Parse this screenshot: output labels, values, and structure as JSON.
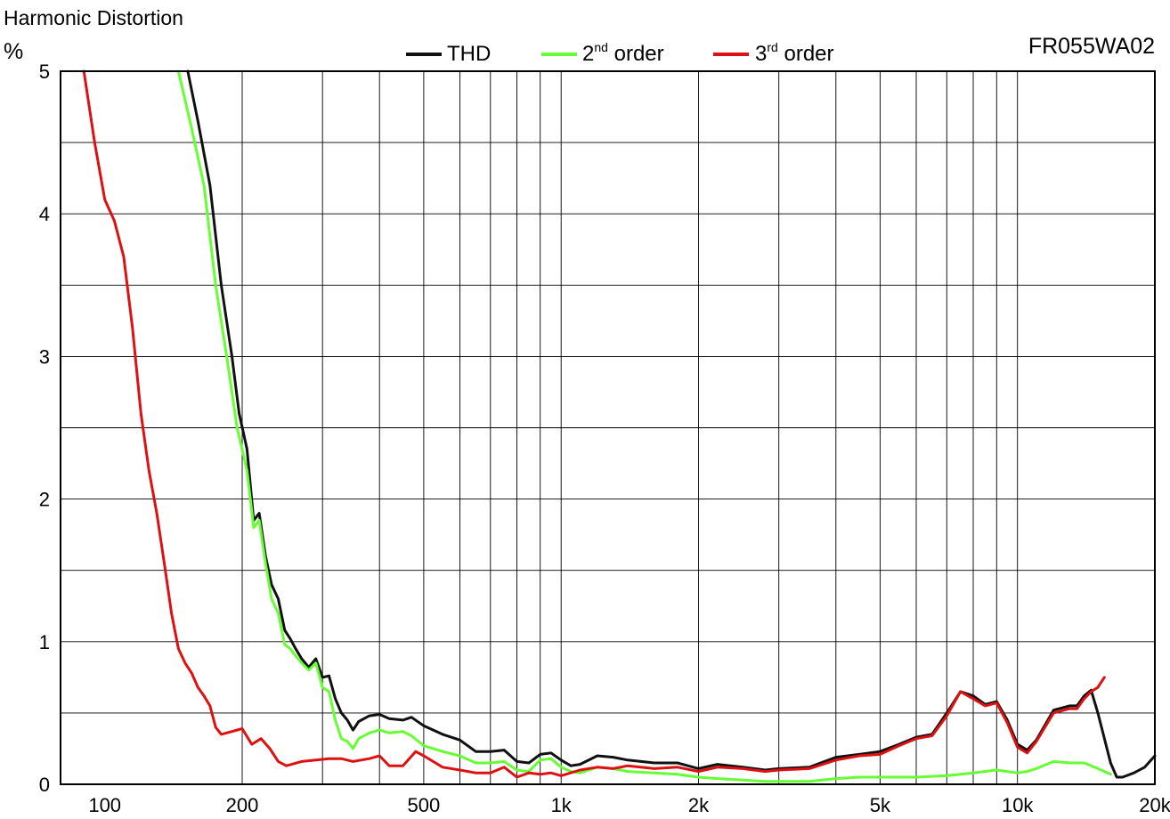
{
  "chart_data": {
    "type": "line",
    "title": "Harmonic Distortion",
    "ylabel": "%",
    "model": "FR055WA02",
    "xscale": "log",
    "xlim": [
      80,
      20000
    ],
    "ylim": [
      0,
      5
    ],
    "grid": true,
    "legend_position": "top-center",
    "y_ticks": [
      {
        "value": 0,
        "label": "0"
      },
      {
        "value": 1,
        "label": "1"
      },
      {
        "value": 2,
        "label": "2"
      },
      {
        "value": 3,
        "label": "3"
      },
      {
        "value": 4,
        "label": "4"
      },
      {
        "value": 5,
        "label": "5"
      }
    ],
    "y_gridlines": [
      0.5,
      1,
      1.5,
      2,
      2.5,
      3,
      3.5,
      4,
      4.5
    ],
    "x_ticks": [
      {
        "value": 100,
        "label": "100"
      },
      {
        "value": 200,
        "label": "200"
      },
      {
        "value": 500,
        "label": "500"
      },
      {
        "value": 1000,
        "label": "1k"
      },
      {
        "value": 2000,
        "label": "2k"
      },
      {
        "value": 5000,
        "label": "5k"
      },
      {
        "value": 10000,
        "label": "10k"
      },
      {
        "value": 20000,
        "label": "20k"
      }
    ],
    "x_gridlines": [
      200,
      300,
      400,
      500,
      600,
      700,
      800,
      900,
      1000,
      2000,
      3000,
      4000,
      5000,
      6000,
      7000,
      8000,
      9000,
      10000
    ],
    "legend": [
      {
        "text": "THD",
        "sup": "",
        "suffix": "",
        "color": "#111111"
      },
      {
        "text": "2",
        "sup": "nd",
        "suffix": " order",
        "color": "#66ff33"
      },
      {
        "text": "3",
        "sup": "rd",
        "suffix": " order",
        "color": "#dd1111"
      }
    ],
    "series": [
      {
        "name": "THD",
        "color": "#111111",
        "points": [
          [
            152,
            5.0
          ],
          [
            160,
            4.65
          ],
          [
            170,
            4.2
          ],
          [
            180,
            3.5
          ],
          [
            190,
            3.0
          ],
          [
            197,
            2.6
          ],
          [
            205,
            2.35
          ],
          [
            212,
            1.85
          ],
          [
            218,
            1.9
          ],
          [
            225,
            1.6
          ],
          [
            232,
            1.4
          ],
          [
            240,
            1.3
          ],
          [
            248,
            1.08
          ],
          [
            255,
            1.02
          ],
          [
            262,
            0.95
          ],
          [
            270,
            0.88
          ],
          [
            280,
            0.82
          ],
          [
            290,
            0.88
          ],
          [
            300,
            0.75
          ],
          [
            310,
            0.76
          ],
          [
            320,
            0.6
          ],
          [
            330,
            0.5
          ],
          [
            340,
            0.45
          ],
          [
            350,
            0.38
          ],
          [
            360,
            0.44
          ],
          [
            380,
            0.48
          ],
          [
            400,
            0.49
          ],
          [
            420,
            0.46
          ],
          [
            450,
            0.45
          ],
          [
            470,
            0.47
          ],
          [
            500,
            0.41
          ],
          [
            550,
            0.35
          ],
          [
            600,
            0.31
          ],
          [
            650,
            0.23
          ],
          [
            700,
            0.23
          ],
          [
            750,
            0.24
          ],
          [
            800,
            0.16
          ],
          [
            850,
            0.15
          ],
          [
            900,
            0.21
          ],
          [
            950,
            0.22
          ],
          [
            1000,
            0.17
          ],
          [
            1050,
            0.13
          ],
          [
            1100,
            0.14
          ],
          [
            1200,
            0.2
          ],
          [
            1300,
            0.19
          ],
          [
            1400,
            0.17
          ],
          [
            1600,
            0.15
          ],
          [
            1800,
            0.15
          ],
          [
            2000,
            0.11
          ],
          [
            2200,
            0.14
          ],
          [
            2500,
            0.12
          ],
          [
            2800,
            0.1
          ],
          [
            3000,
            0.11
          ],
          [
            3500,
            0.12
          ],
          [
            4000,
            0.19
          ],
          [
            4500,
            0.21
          ],
          [
            5000,
            0.23
          ],
          [
            5500,
            0.28
          ],
          [
            6000,
            0.33
          ],
          [
            6500,
            0.35
          ],
          [
            7000,
            0.5
          ],
          [
            7500,
            0.65
          ],
          [
            8000,
            0.62
          ],
          [
            8500,
            0.56
          ],
          [
            9000,
            0.58
          ],
          [
            9500,
            0.45
          ],
          [
            10000,
            0.28
          ],
          [
            10500,
            0.24
          ],
          [
            11000,
            0.31
          ],
          [
            12000,
            0.52
          ],
          [
            13000,
            0.55
          ],
          [
            13500,
            0.55
          ],
          [
            14000,
            0.62
          ],
          [
            14500,
            0.66
          ],
          [
            15000,
            0.5
          ],
          [
            16000,
            0.15
          ],
          [
            16500,
            0.05
          ],
          [
            17000,
            0.05
          ],
          [
            18000,
            0.08
          ],
          [
            19000,
            0.12
          ],
          [
            20000,
            0.2
          ]
        ]
      },
      {
        "name": "2nd order",
        "color": "#66ff33",
        "points": [
          [
            145,
            5.0
          ],
          [
            155,
            4.6
          ],
          [
            165,
            4.2
          ],
          [
            175,
            3.5
          ],
          [
            185,
            3.0
          ],
          [
            195,
            2.5
          ],
          [
            205,
            2.2
          ],
          [
            212,
            1.8
          ],
          [
            218,
            1.85
          ],
          [
            225,
            1.55
          ],
          [
            232,
            1.3
          ],
          [
            240,
            1.2
          ],
          [
            248,
            0.98
          ],
          [
            255,
            0.95
          ],
          [
            262,
            0.9
          ],
          [
            270,
            0.85
          ],
          [
            280,
            0.8
          ],
          [
            290,
            0.85
          ],
          [
            300,
            0.68
          ],
          [
            310,
            0.65
          ],
          [
            320,
            0.45
          ],
          [
            330,
            0.32
          ],
          [
            340,
            0.3
          ],
          [
            350,
            0.25
          ],
          [
            360,
            0.32
          ],
          [
            380,
            0.36
          ],
          [
            400,
            0.38
          ],
          [
            420,
            0.36
          ],
          [
            450,
            0.37
          ],
          [
            470,
            0.34
          ],
          [
            500,
            0.27
          ],
          [
            550,
            0.23
          ],
          [
            600,
            0.2
          ],
          [
            650,
            0.15
          ],
          [
            700,
            0.15
          ],
          [
            750,
            0.16
          ],
          [
            800,
            0.1
          ],
          [
            850,
            0.09
          ],
          [
            900,
            0.17
          ],
          [
            950,
            0.18
          ],
          [
            1000,
            0.12
          ],
          [
            1050,
            0.09
          ],
          [
            1100,
            0.08
          ],
          [
            1200,
            0.12
          ],
          [
            1300,
            0.11
          ],
          [
            1400,
            0.09
          ],
          [
            1600,
            0.08
          ],
          [
            1800,
            0.07
          ],
          [
            2000,
            0.05
          ],
          [
            2200,
            0.04
          ],
          [
            2500,
            0.03
          ],
          [
            2800,
            0.02
          ],
          [
            3000,
            0.02
          ],
          [
            3500,
            0.02
          ],
          [
            4000,
            0.04
          ],
          [
            4500,
            0.05
          ],
          [
            5000,
            0.05
          ],
          [
            6000,
            0.05
          ],
          [
            7000,
            0.06
          ],
          [
            8000,
            0.08
          ],
          [
            9000,
            0.1
          ],
          [
            10000,
            0.08
          ],
          [
            10500,
            0.09
          ],
          [
            11000,
            0.11
          ],
          [
            12000,
            0.16
          ],
          [
            13000,
            0.15
          ],
          [
            14000,
            0.15
          ],
          [
            15000,
            0.11
          ],
          [
            16000,
            0.07
          ]
        ]
      },
      {
        "name": "3rd order",
        "color": "#dd1111",
        "points": [
          [
            90,
            5.0
          ],
          [
            95,
            4.5
          ],
          [
            100,
            4.1
          ],
          [
            105,
            3.95
          ],
          [
            110,
            3.7
          ],
          [
            115,
            3.2
          ],
          [
            120,
            2.6
          ],
          [
            125,
            2.2
          ],
          [
            130,
            1.9
          ],
          [
            135,
            1.55
          ],
          [
            140,
            1.2
          ],
          [
            145,
            0.95
          ],
          [
            150,
            0.85
          ],
          [
            155,
            0.78
          ],
          [
            160,
            0.68
          ],
          [
            165,
            0.62
          ],
          [
            170,
            0.55
          ],
          [
            175,
            0.4
          ],
          [
            180,
            0.35
          ],
          [
            190,
            0.37
          ],
          [
            200,
            0.39
          ],
          [
            210,
            0.28
          ],
          [
            220,
            0.32
          ],
          [
            230,
            0.25
          ],
          [
            240,
            0.16
          ],
          [
            250,
            0.13
          ],
          [
            270,
            0.16
          ],
          [
            290,
            0.17
          ],
          [
            310,
            0.18
          ],
          [
            330,
            0.18
          ],
          [
            350,
            0.16
          ],
          [
            380,
            0.18
          ],
          [
            400,
            0.2
          ],
          [
            420,
            0.13
          ],
          [
            450,
            0.13
          ],
          [
            480,
            0.23
          ],
          [
            500,
            0.2
          ],
          [
            550,
            0.12
          ],
          [
            600,
            0.1
          ],
          [
            650,
            0.08
          ],
          [
            700,
            0.08
          ],
          [
            750,
            0.12
          ],
          [
            800,
            0.05
          ],
          [
            850,
            0.08
          ],
          [
            900,
            0.07
          ],
          [
            950,
            0.08
          ],
          [
            1000,
            0.06
          ],
          [
            1100,
            0.1
          ],
          [
            1200,
            0.12
          ],
          [
            1300,
            0.11
          ],
          [
            1400,
            0.13
          ],
          [
            1600,
            0.11
          ],
          [
            1800,
            0.12
          ],
          [
            2000,
            0.09
          ],
          [
            2200,
            0.12
          ],
          [
            2500,
            0.11
          ],
          [
            2800,
            0.09
          ],
          [
            3000,
            0.1
          ],
          [
            3500,
            0.11
          ],
          [
            4000,
            0.17
          ],
          [
            4500,
            0.2
          ],
          [
            5000,
            0.21
          ],
          [
            5500,
            0.27
          ],
          [
            6000,
            0.32
          ],
          [
            6500,
            0.34
          ],
          [
            7000,
            0.48
          ],
          [
            7500,
            0.65
          ],
          [
            8000,
            0.6
          ],
          [
            8500,
            0.55
          ],
          [
            9000,
            0.57
          ],
          [
            9500,
            0.43
          ],
          [
            10000,
            0.26
          ],
          [
            10500,
            0.22
          ],
          [
            11000,
            0.3
          ],
          [
            12000,
            0.5
          ],
          [
            13000,
            0.53
          ],
          [
            13500,
            0.53
          ],
          [
            14000,
            0.6
          ],
          [
            14500,
            0.65
          ],
          [
            15000,
            0.68
          ],
          [
            15500,
            0.75
          ]
        ]
      }
    ]
  }
}
